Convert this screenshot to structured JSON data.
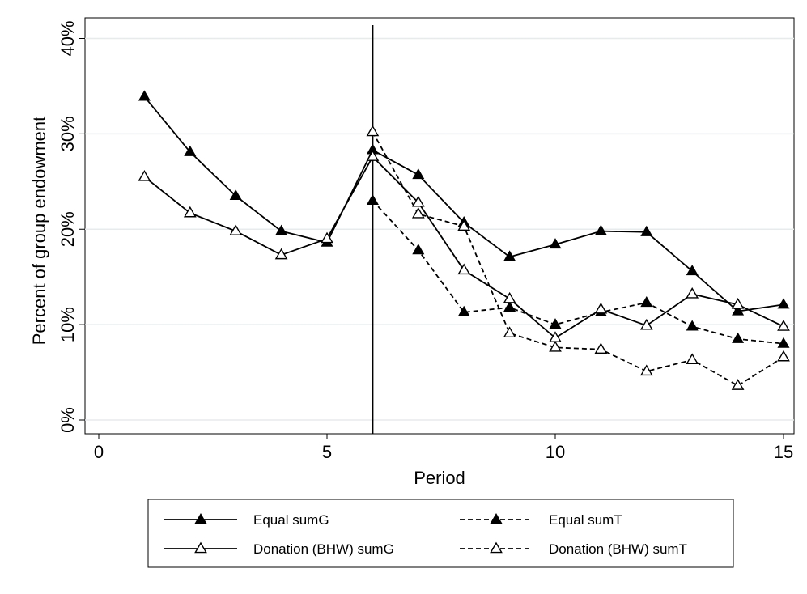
{
  "chart_data": {
    "type": "line",
    "xlabel": "Period",
    "ylabel": "Percent of group endowment",
    "xlim": [
      0,
      15
    ],
    "ylim": [
      0,
      40
    ],
    "x_ticks": [
      "0",
      "5",
      "10",
      "15"
    ],
    "y_ticks": [
      "0%",
      "10%",
      "20%",
      "30%",
      "40%"
    ],
    "grid": "horizontal",
    "vertical_reference_line": 6,
    "legend_position": "bottom",
    "series": [
      {
        "name": "Equal sumG",
        "style": "solid",
        "marker": "filled-triangle",
        "color": "#000000",
        "x": [
          1,
          2,
          3,
          4,
          5,
          6,
          7,
          8,
          9,
          10,
          11,
          12,
          13,
          14,
          15
        ],
        "values": [
          33.9,
          28.1,
          23.5,
          19.8,
          18.6,
          28.3,
          25.7,
          20.7,
          17.1,
          18.4,
          19.8,
          19.7,
          15.6,
          11.4,
          12.1
        ]
      },
      {
        "name": "Equal sumT",
        "style": "dashed",
        "marker": "filled-triangle",
        "color": "#000000",
        "x": [
          6,
          7,
          8,
          9,
          10,
          11,
          12,
          13,
          14,
          15
        ],
        "values": [
          23.0,
          17.8,
          11.3,
          11.8,
          10.0,
          11.3,
          12.3,
          9.8,
          8.5,
          8.0
        ]
      },
      {
        "name": "Donation (BHW) sumG",
        "style": "solid",
        "marker": "hollow-triangle",
        "color": "#000000",
        "x": [
          1,
          2,
          3,
          4,
          5,
          6,
          7,
          8,
          9,
          10,
          11,
          12,
          13,
          14,
          15
        ],
        "values": [
          25.5,
          21.7,
          19.8,
          17.3,
          19.0,
          27.6,
          22.8,
          15.7,
          12.7,
          8.6,
          11.6,
          9.9,
          13.2,
          12.1,
          9.8
        ]
      },
      {
        "name": "Donation (BHW) sumT",
        "style": "dashed",
        "marker": "hollow-triangle",
        "color": "#000000",
        "x": [
          6,
          7,
          8,
          9,
          10,
          11,
          12,
          13,
          14,
          15
        ],
        "values": [
          30.2,
          21.6,
          20.3,
          9.1,
          7.6,
          7.4,
          5.1,
          6.3,
          3.6,
          6.6
        ]
      }
    ],
    "legend": [
      "Equal sumG",
      "Equal sumT",
      "Donation (BHW) sumG",
      "Donation (BHW) sumT"
    ]
  }
}
